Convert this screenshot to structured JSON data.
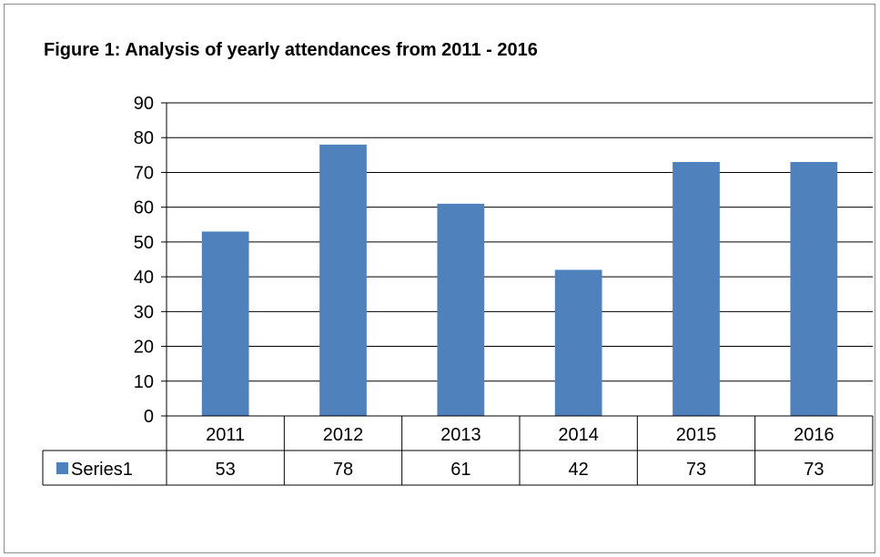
{
  "chart_data": {
    "type": "bar",
    "title": "Figure 1: Analysis of yearly attendances from 2011 - 2016",
    "categories": [
      "2011",
      "2012",
      "2013",
      "2014",
      "2015",
      "2016"
    ],
    "series": [
      {
        "name": "Series1",
        "values": [
          53,
          78,
          61,
          42,
          73,
          73
        ]
      }
    ],
    "ylim": [
      0,
      90
    ],
    "yticks": [
      "0",
      "10",
      "20",
      "30",
      "40",
      "50",
      "60",
      "70",
      "80",
      "90"
    ],
    "data_table": true,
    "grid": true,
    "colors": {
      "bar": "#4f81bd",
      "gridline": "#000000"
    }
  }
}
